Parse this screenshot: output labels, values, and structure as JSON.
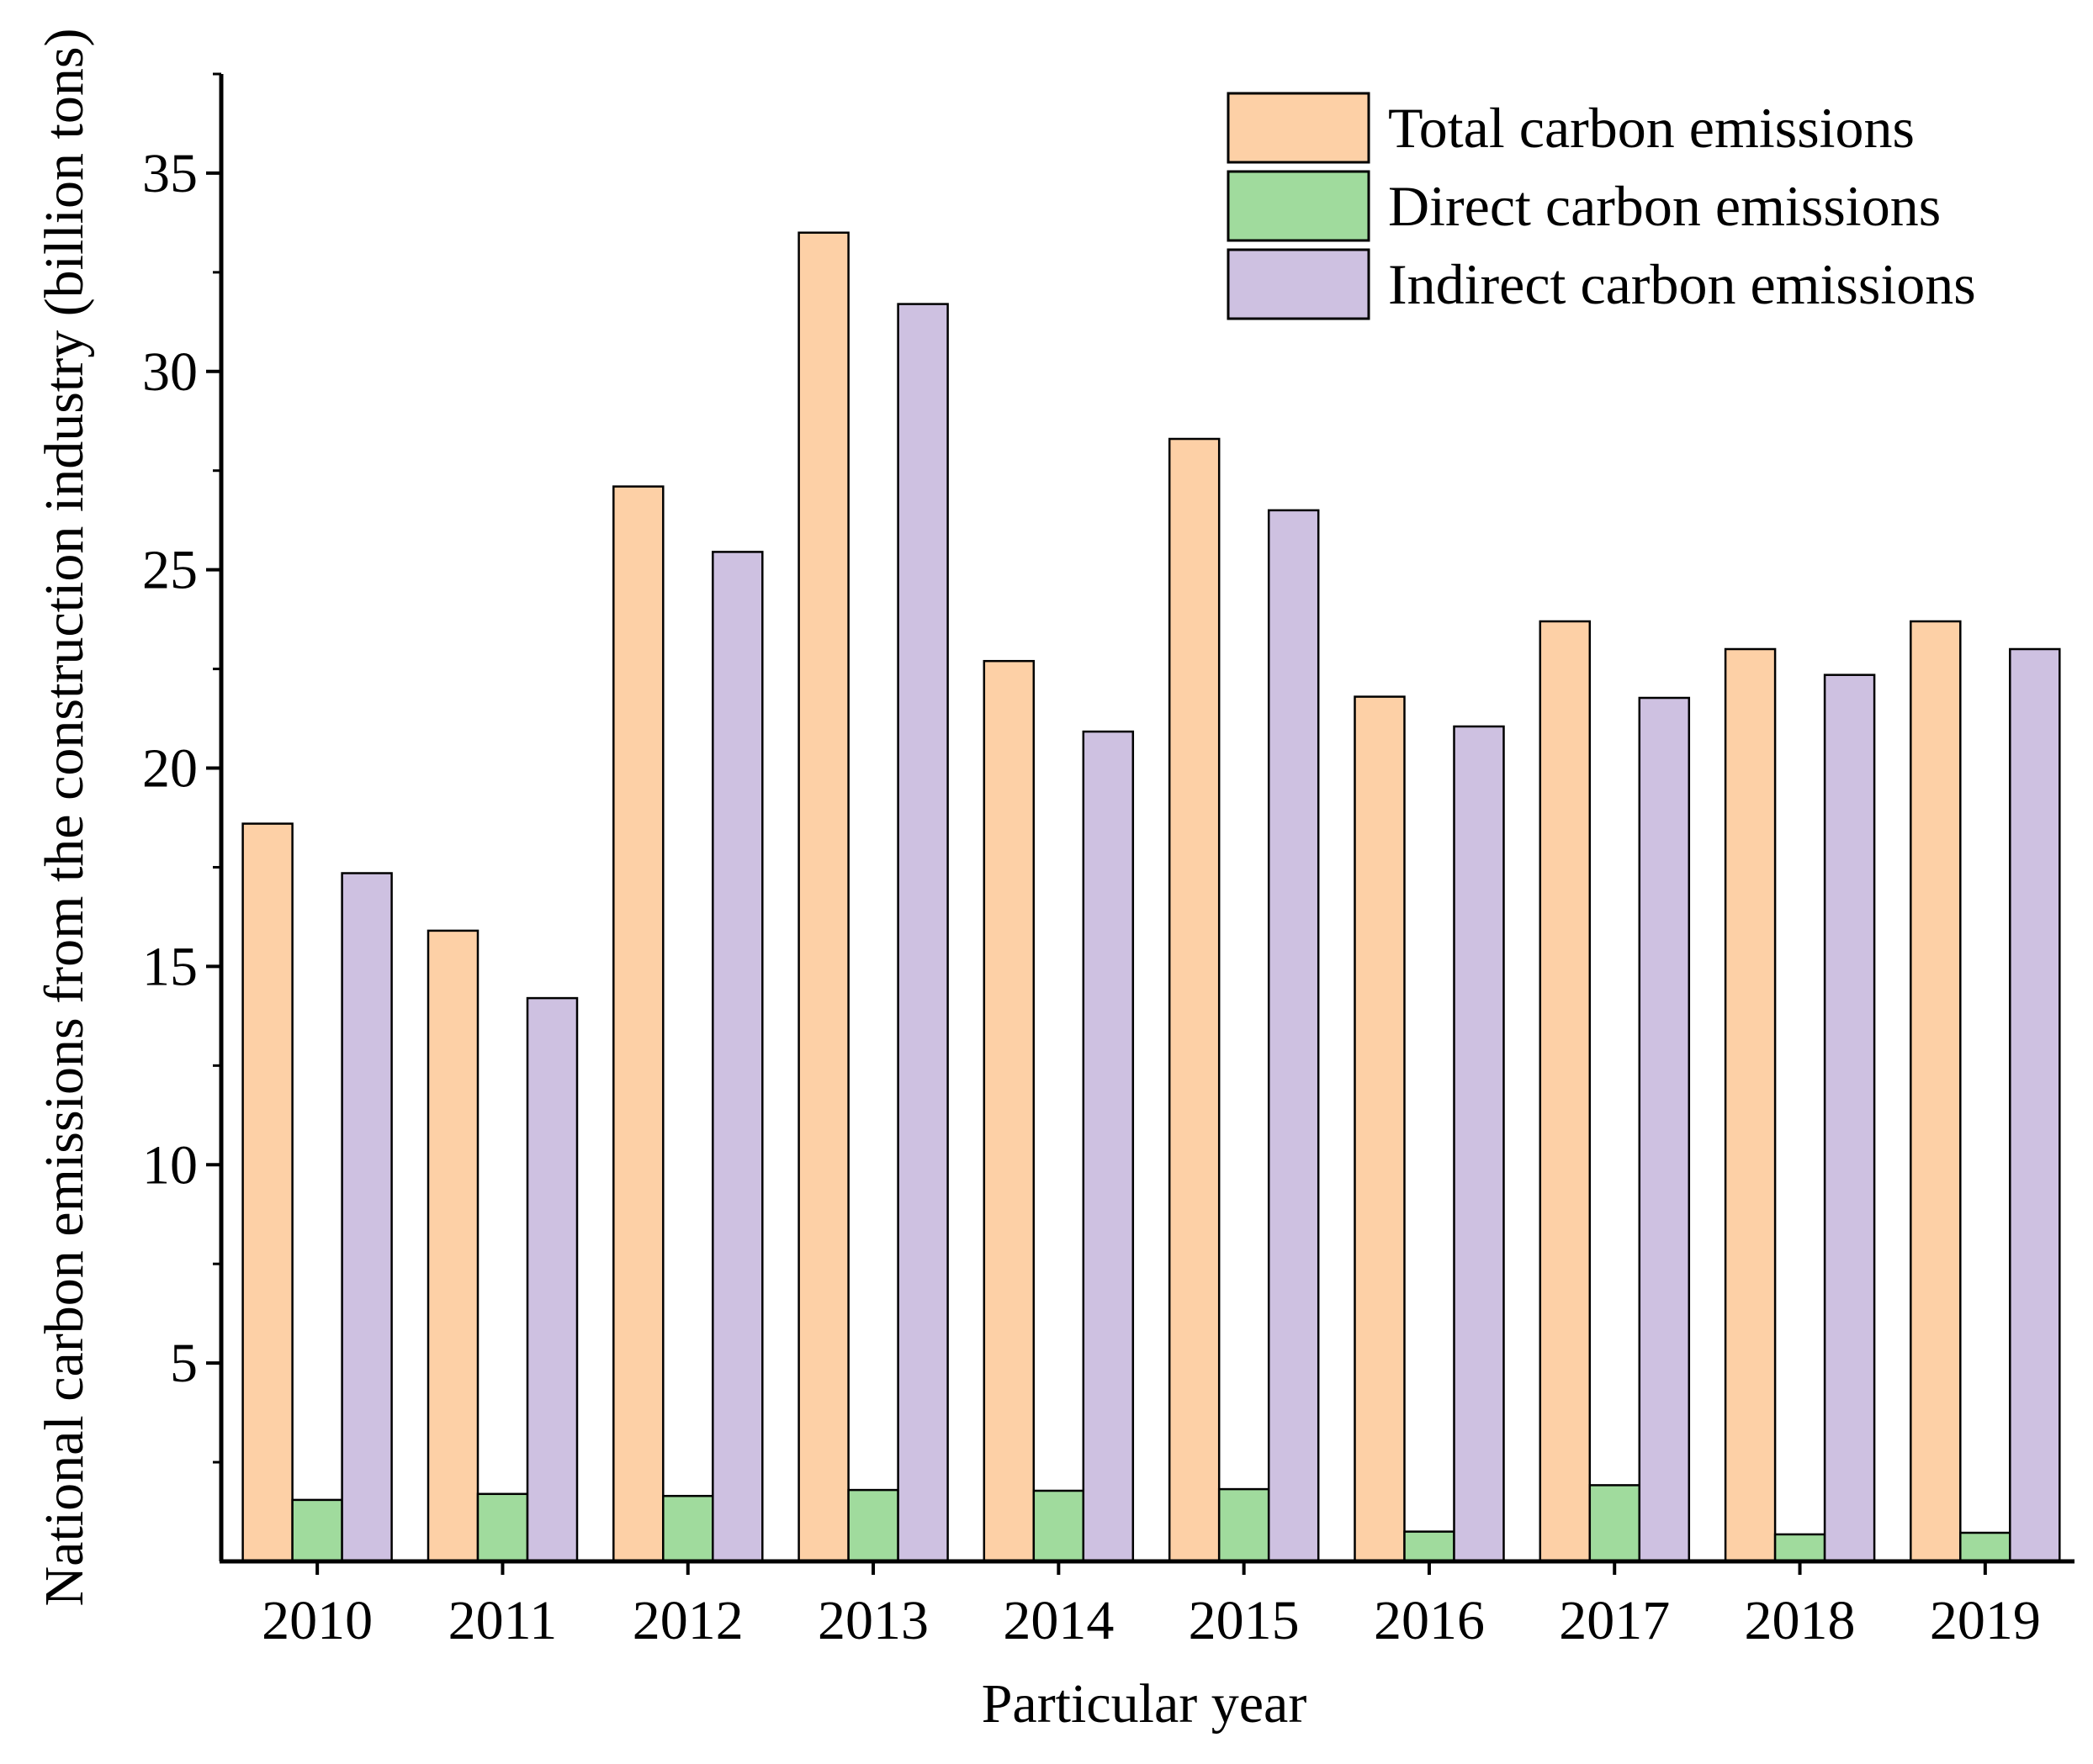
{
  "chart_data": {
    "type": "bar",
    "xlabel": "Particular year",
    "ylabel": "National carbon emissions from the construction industry (billion tons)",
    "categories": [
      "2010",
      "2011",
      "2012",
      "2013",
      "2014",
      "2015",
      "2016",
      "2017",
      "2018",
      "2019"
    ],
    "ylim": [
      0,
      37.5
    ],
    "yticks": [
      5,
      10,
      15,
      20,
      25,
      30,
      35
    ],
    "grid": false,
    "legend_position": "top-right",
    "series": [
      {
        "name": "Total carbon emissions",
        "color": "#FDD0A6",
        "values": [
          18.6,
          15.9,
          27.1,
          33.5,
          22.7,
          28.3,
          21.8,
          23.7,
          23.0,
          23.7
        ]
      },
      {
        "name": "Direct carbon emissions",
        "color": "#A0DB9D",
        "values": [
          1.55,
          1.7,
          1.65,
          1.8,
          1.78,
          1.82,
          0.75,
          1.92,
          0.68,
          0.72
        ]
      },
      {
        "name": "Indirect carbon emissions",
        "color": "#CEC1E1",
        "values": [
          17.35,
          14.2,
          25.45,
          31.7,
          20.92,
          26.5,
          21.05,
          21.77,
          22.35,
          23.0
        ]
      }
    ]
  }
}
